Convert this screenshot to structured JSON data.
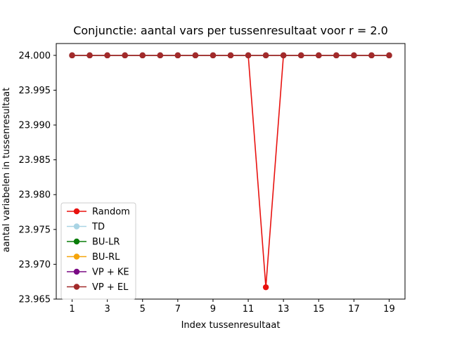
{
  "chart_data": {
    "type": "line",
    "title": "Conjunctie: aantal vars per tussenresultaat voor r = 2.0",
    "xlabel": "Index tussenresultaat",
    "ylabel": "aantal variabelen in tussenresultaat",
    "xlim": [
      0.1,
      19.9
    ],
    "ylim": [
      23.965,
      24.0017
    ],
    "xticks": [
      "1",
      "3",
      "5",
      "7",
      "9",
      "11",
      "13",
      "15",
      "17",
      "19"
    ],
    "yticks": [
      "23.965",
      "23.970",
      "23.975",
      "23.980",
      "23.985",
      "23.990",
      "23.995",
      "24.000"
    ],
    "x": [
      1,
      2,
      3,
      4,
      5,
      6,
      7,
      8,
      9,
      10,
      11,
      12,
      13,
      14,
      15,
      16,
      17,
      18,
      19
    ],
    "legend_position": "lower-left",
    "grid": false,
    "series": [
      {
        "name": "Random",
        "color": "#e8120f",
        "values": [
          24,
          24,
          24,
          24,
          24,
          24,
          24,
          24,
          24,
          24,
          24,
          23.9667,
          24,
          24,
          24,
          24,
          24,
          24,
          24
        ]
      },
      {
        "name": "TD",
        "color": "#a9d4e4",
        "values": [
          24,
          24,
          24,
          24,
          24,
          24,
          24,
          24,
          24,
          24,
          24,
          24,
          24,
          24,
          24,
          24,
          24,
          24,
          24
        ]
      },
      {
        "name": "BU-LR",
        "color": "#0a7d0a",
        "values": [
          24,
          24,
          24,
          24,
          24,
          24,
          24,
          24,
          24,
          24,
          24,
          24,
          24,
          24,
          24,
          24,
          24,
          24,
          24
        ]
      },
      {
        "name": "BU-RL",
        "color": "#f5a40a",
        "values": [
          24,
          24,
          24,
          24,
          24,
          24,
          24,
          24,
          24,
          24,
          24,
          24,
          24,
          24,
          24,
          24,
          24,
          24,
          24
        ]
      },
      {
        "name": "VP + KE",
        "color": "#7a0a84",
        "values": [
          24,
          24,
          24,
          24,
          24,
          24,
          24,
          24,
          24,
          24,
          24,
          24,
          24,
          24,
          24,
          24,
          24,
          24,
          24
        ]
      },
      {
        "name": "VP + EL",
        "color": "#a22a2a",
        "values": [
          24,
          24,
          24,
          24,
          24,
          24,
          24,
          24,
          24,
          24,
          24,
          24,
          24,
          24,
          24,
          24,
          24,
          24,
          24
        ]
      }
    ]
  }
}
